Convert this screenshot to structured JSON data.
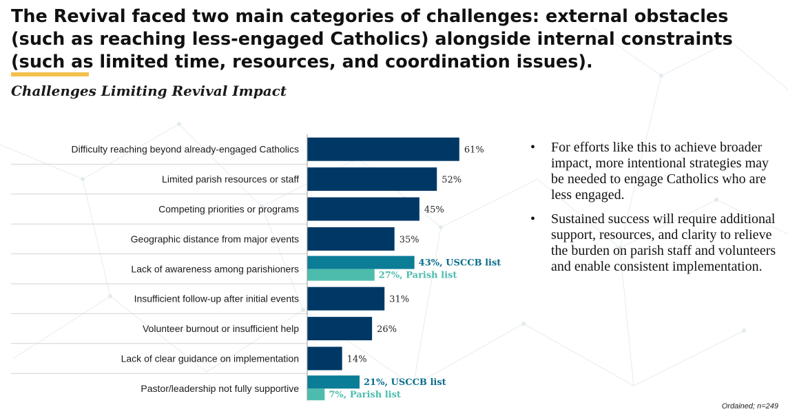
{
  "headline": "The Revival faced two main categories of challenges: external obstacles (such as reaching less-engaged Catholics) alongside internal constraints (such as limited time, resources, and coordination issues).",
  "footnote": "Ordained; n=249",
  "colors": {
    "primary": "#003865",
    "usccb": "#0b7d96",
    "parish": "#4dbcad",
    "accent": "#f2c14e"
  },
  "chart_data": {
    "type": "bar",
    "orientation": "horizontal",
    "title": "Challenges Limiting Revival Impact",
    "xlim": [
      0,
      100
    ],
    "unit": "%",
    "categories": [
      "Difficulty reaching beyond already-engaged Catholics",
      "Limited parish resources or staff",
      "Competing priorities or programs",
      "Geographic distance from major events",
      "Lack of awareness among parishioners",
      "Insufficient follow-up after initial events",
      "Volunteer burnout or insufficient help",
      "Lack of clear guidance on implementation",
      "Pastor/leadership not fully supportive"
    ],
    "values": [
      61,
      52,
      45,
      35,
      null,
      31,
      26,
      14,
      null
    ],
    "split": [
      {
        "index": 4,
        "series": [
          {
            "name": "USCCB list",
            "value": 43,
            "label": "43%, USCCB list"
          },
          {
            "name": "Parish list",
            "value": 27,
            "label": "27%, Parish list"
          }
        ]
      },
      {
        "index": 8,
        "series": [
          {
            "name": "USCCB list",
            "value": 21,
            "label": "21%, USCCB list"
          },
          {
            "name": "Parish list",
            "value": 7,
            "label": "7%, Parish list"
          }
        ]
      }
    ]
  },
  "notes": [
    "For efforts like this to achieve broader impact, more intentional strategies may be needed to engage Catholics who are less engaged.",
    "Sustained success will require additional support, resources, and clarity to relieve the burden on parish staff and volunteers and enable consistent implementation."
  ]
}
